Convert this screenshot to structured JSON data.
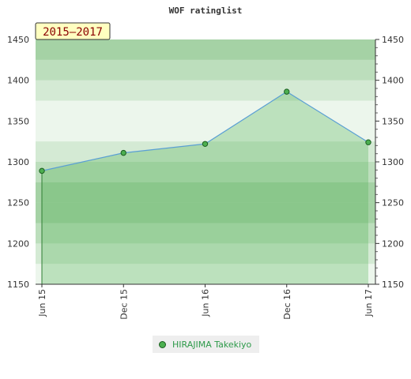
{
  "chart_data": {
    "type": "area",
    "title": "WOF ratinglist",
    "period_label": "2015–2017",
    "x": [
      "Jun 15",
      "Dec 15",
      "Jun 16",
      "Dec 16",
      "Jun 17"
    ],
    "series": [
      {
        "name": "HIRAJIMA Takekiyo",
        "values": [
          1289,
          1311,
          1322,
          1386,
          1324
        ]
      }
    ],
    "ylim": [
      1150,
      1450
    ],
    "yticks": [
      1150,
      1200,
      1250,
      1300,
      1350,
      1400,
      1450
    ],
    "grid": true,
    "legend_position": "bottom"
  },
  "colors": {
    "line": "#5a9fd4",
    "fill": "#4caf50",
    "marker_fill": "#4caf50",
    "marker_stroke": "#1b5e20",
    "period_bg": "#ffffc0",
    "period_text": "#8b0000"
  }
}
